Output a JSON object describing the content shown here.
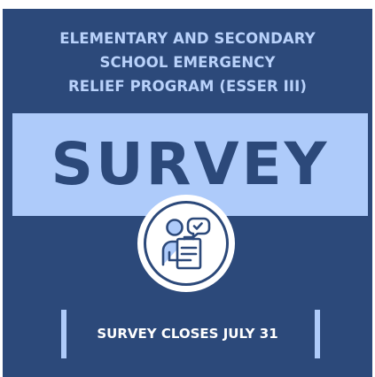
{
  "heading": {
    "line1": "ELEMENTARY AND SECONDARY",
    "line2": "SCHOOL EMERGENCY",
    "line3": "RELIEF PROGRAM (ESSER III)"
  },
  "banner": {
    "title": "SURVEY"
  },
  "badge": {
    "icon": "survey-person-clipboard-icon"
  },
  "footer": {
    "text": "SURVEY CLOSES JULY 31"
  },
  "colors": {
    "panel": "#2c497a",
    "accent": "#aecbfa",
    "heading_text": "#b9d2fb",
    "footer_text": "#ffffff"
  }
}
